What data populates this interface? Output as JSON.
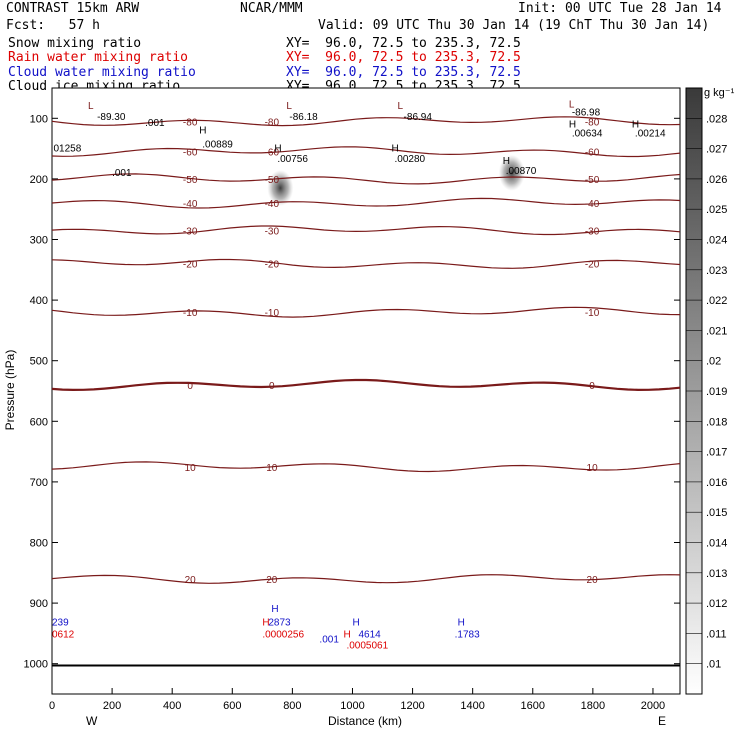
{
  "header": {
    "left1": "CONTRAST 15km ARW",
    "center1": "NCAR/MMM",
    "right1": "Init: 00 UTC Tue 28 Jan 14",
    "fcst": "Fcst:   57 h",
    "valid": "Valid: 09 UTC Thu 30 Jan 14 (19 ChT Thu 30 Jan 14)",
    "fields": [
      {
        "label": "Snow mixing ratio",
        "xy": "XY=  96.0, 72.5 to 235.3, 72.5",
        "color": "#000000"
      },
      {
        "label": "Rain water mixing ratio",
        "xy": "XY=  96.0, 72.5 to 235.3, 72.5",
        "color": "#dd0000"
      },
      {
        "label": "Cloud water mixing ratio",
        "xy": "XY=  96.0, 72.5 to 235.3, 72.5",
        "color": "#1010c8"
      },
      {
        "label": "Cloud ice mixing ratio",
        "xy": "XY=  96.0, 72.5 to 235.3, 72.5",
        "color": "#000000"
      }
    ]
  },
  "chart_data": {
    "type": "heatmap",
    "xlabel": "Distance (km)",
    "ylabel": "Pressure (hPa)",
    "xlim": [
      0,
      2090
    ],
    "ylim": [
      1050,
      50
    ],
    "x_ticks": [
      0,
      200,
      400,
      600,
      800,
      1000,
      1200,
      1400,
      1600,
      1800,
      2000
    ],
    "y_ticks": [
      100,
      200,
      300,
      400,
      500,
      600,
      700,
      800,
      900,
      1000
    ],
    "x_end_labels": {
      "left": "W",
      "right": "E"
    },
    "colorbar": {
      "unit": "g kg⁻¹",
      "ticks": [
        ".01",
        ".011",
        ".012",
        ".013",
        ".014",
        ".015",
        ".016",
        ".017",
        ".018",
        ".019",
        ".02",
        ".021",
        ".022",
        ".023",
        ".024",
        ".025",
        ".026",
        ".027",
        ".028"
      ]
    },
    "temperature_contours": [
      {
        "label": "-80",
        "p": 105,
        "color": "#7a1a1a"
      },
      {
        "label": "-60",
        "p": 155,
        "color": "#7a1a1a"
      },
      {
        "label": "-50",
        "p": 200,
        "color": "#7a1a1a"
      },
      {
        "label": "-40",
        "p": 240,
        "color": "#7a1a1a"
      },
      {
        "label": "-30",
        "p": 285,
        "color": "#7a1a1a"
      },
      {
        "label": "-20",
        "p": 340,
        "color": "#7a1a1a"
      },
      {
        "label": "-10",
        "p": 420,
        "color": "#7a1a1a"
      },
      {
        "label": "0",
        "p": 540,
        "color": "#7a1a1a"
      },
      {
        "label": "10",
        "p": 675,
        "color": "#7a1a1a"
      },
      {
        "label": "20",
        "p": 860,
        "color": "#7a1a1a"
      }
    ],
    "extrema_labels": [
      {
        "text": "L",
        "x": 120,
        "p": 85,
        "color": "#7a1a1a"
      },
      {
        "text": "-89.30",
        "x": 150,
        "p": 103,
        "color": "#000000"
      },
      {
        "text": "L",
        "x": 780,
        "p": 85,
        "color": "#7a1a1a"
      },
      {
        "text": "-86.18",
        "x": 790,
        "p": 103,
        "color": "#000000"
      },
      {
        "text": "L",
        "x": 1150,
        "p": 85,
        "color": "#7a1a1a"
      },
      {
        "text": "-86.94",
        "x": 1170,
        "p": 103,
        "color": "#000000"
      },
      {
        "text": "L",
        "x": 1720,
        "p": 82,
        "color": "#7a1a1a"
      },
      {
        "text": "-86.98",
        "x": 1730,
        "p": 95,
        "color": "#000000"
      },
      {
        "text": "H",
        "x": 490,
        "p": 125,
        "color": "#000000"
      },
      {
        "text": ".00889",
        "x": 500,
        "p": 148,
        "color": "#000000"
      },
      {
        "text": "H",
        "x": 740,
        "p": 155,
        "color": "#000000"
      },
      {
        "text": ".00756",
        "x": 750,
        "p": 172,
        "color": "#000000"
      },
      {
        "text": "H",
        "x": 1130,
        "p": 155,
        "color": "#000000"
      },
      {
        "text": ".00280",
        "x": 1140,
        "p": 172,
        "color": "#000000"
      },
      {
        "text": "H",
        "x": 1500,
        "p": 175,
        "color": "#000000"
      },
      {
        "text": ".00870",
        "x": 1510,
        "p": 192,
        "color": "#000000"
      },
      {
        "text": "H",
        "x": 1720,
        "p": 115,
        "color": "#000000"
      },
      {
        "text": ".00634",
        "x": 1730,
        "p": 130,
        "color": "#000000"
      },
      {
        "text": "H",
        "x": 1930,
        "p": 115,
        "color": "#000000"
      },
      {
        "text": ".00214",
        "x": 1940,
        "p": 130,
        "color": "#000000"
      },
      {
        "text": ".001",
        "x": 310,
        "p": 113,
        "color": "#000000"
      },
      {
        "text": ".001",
        "x": 200,
        "p": 195,
        "color": "#000000"
      },
      {
        "text": "01258",
        "x": 5,
        "p": 155,
        "color": "#000000"
      },
      {
        "text": "H",
        "x": 730,
        "p": 915,
        "color": "#1010c8"
      },
      {
        "text": "H",
        "x": 1000,
        "p": 937,
        "color": "#1010c8"
      },
      {
        "text": "H",
        "x": 1350,
        "p": 937,
        "color": "#1010c8"
      },
      {
        "text": "H",
        "x": 700,
        "p": 937,
        "color": "#dd0000"
      },
      {
        "text": "H",
        "x": 970,
        "p": 957,
        "color": "#dd0000"
      },
      {
        "text": "2873",
        "x": 720,
        "p": 937,
        "color": "#1010c8"
      },
      {
        "text": "4614",
        "x": 1020,
        "p": 957,
        "color": "#1010c8"
      },
      {
        "text": ".001",
        "x": 890,
        "p": 965,
        "color": "#1010c8"
      },
      {
        "text": ".1783",
        "x": 1340,
        "p": 957,
        "color": "#1010c8"
      },
      {
        "text": "239",
        "x": 0,
        "p": 937,
        "color": "#1010c8"
      },
      {
        "text": "0612",
        "x": 0,
        "p": 957,
        "color": "#dd0000"
      },
      {
        "text": ".0000256",
        "x": 700,
        "p": 957,
        "color": "#dd0000"
      },
      {
        "text": ".0005061",
        "x": 980,
        "p": 975,
        "color": "#dd0000"
      }
    ],
    "shaded_ice_blobs": [
      {
        "x": 760,
        "p": 215,
        "value": 0.021
      },
      {
        "x": 1530,
        "p": 190,
        "value": 0.014
      }
    ]
  }
}
